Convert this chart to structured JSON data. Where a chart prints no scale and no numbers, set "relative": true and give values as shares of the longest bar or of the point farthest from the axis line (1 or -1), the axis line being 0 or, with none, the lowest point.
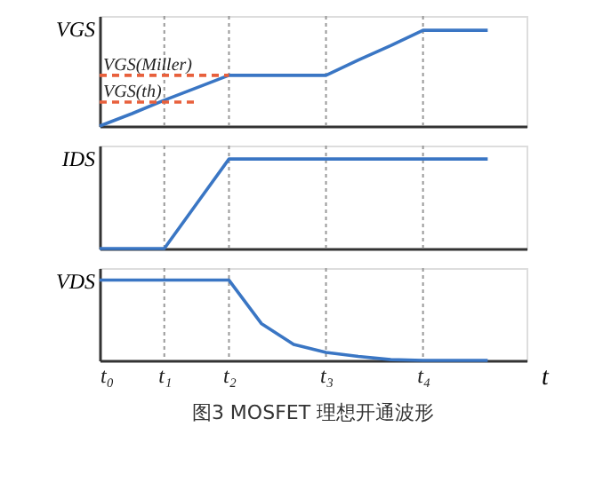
{
  "chart_data": [
    {
      "type": "line",
      "relative": true,
      "ylabel": "VGS",
      "categories": [
        "t₀",
        null,
        "t₁",
        null,
        "t₂",
        null,
        null,
        "t₃",
        null,
        null,
        "t₄",
        null,
        null
      ],
      "tick_labels": false,
      "grid": false,
      "series": [
        {
          "color": "#3a76c4",
          "values": [
            0,
            0.13,
            0.27,
            0.4,
            0.53,
            0.53,
            0.53,
            0.53,
            0.69,
            0.84,
            1,
            1,
            1
          ]
        },
        {
          "type": "line",
          "color": "#e8603c",
          "line_style": "dashed",
          "values": [
            0.53,
            0.53,
            0.53,
            0.53,
            0.53,
            null,
            null,
            null,
            null,
            null,
            null,
            null,
            null
          ]
        },
        {
          "type": "line",
          "color": "#e8603c",
          "line_style": "dashed",
          "values": [
            0.25,
            0.25,
            0.25,
            0.25,
            null,
            null,
            null,
            null,
            null,
            null,
            null,
            null,
            null
          ]
        }
      ],
      "ref_lines": [
        {
          "axis": "x",
          "value": "t₁",
          "color": "#999999",
          "line_style": "dotted"
        },
        {
          "axis": "x",
          "value": "t₂",
          "color": "#999999",
          "line_style": "dotted"
        },
        {
          "axis": "x",
          "value": "t₃",
          "color": "#999999",
          "line_style": "dotted"
        },
        {
          "axis": "x",
          "value": "t₄",
          "color": "#999999",
          "line_style": "dotted"
        }
      ],
      "annotations": [
        {
          "text": "VGS(Miller)",
          "x": "t₀",
          "y": 0.53
        },
        {
          "text": "VGS(th)",
          "x": "t₀",
          "y": 0.25
        }
      ]
    },
    {
      "type": "line",
      "relative": true,
      "ylabel": "IDS",
      "categories": [
        "t₀",
        null,
        "t₁",
        null,
        "t₂",
        null,
        null,
        "t₃",
        null,
        null,
        "t₄",
        null,
        null
      ],
      "tick_labels": false,
      "grid": false,
      "series": [
        {
          "color": "#3a76c4",
          "values": [
            0,
            0,
            0,
            0.5,
            1,
            1,
            1,
            1,
            1,
            1,
            1,
            1,
            1
          ]
        }
      ],
      "ref_lines": [
        {
          "axis": "x",
          "value": "t₁",
          "color": "#999999",
          "line_style": "dotted"
        },
        {
          "axis": "x",
          "value": "t₂",
          "color": "#999999",
          "line_style": "dotted"
        },
        {
          "axis": "x",
          "value": "t₃",
          "color": "#999999",
          "line_style": "dotted"
        },
        {
          "axis": "x",
          "value": "t₄",
          "color": "#999999",
          "line_style": "dotted"
        }
      ]
    },
    {
      "type": "line",
      "relative": true,
      "ylabel": "VDS",
      "xlabel": "t",
      "categories": [
        "t₀",
        null,
        "t₁",
        null,
        "t₂",
        null,
        null,
        "t₃",
        null,
        null,
        "t₄",
        null,
        null
      ],
      "tick_labels": "x",
      "grid": false,
      "series": [
        {
          "color": "#3a76c4",
          "values": [
            1,
            1,
            1,
            1,
            1,
            0.46,
            0.2,
            0.1,
            0.05,
            0.01,
            0,
            0,
            0
          ]
        }
      ],
      "ref_lines": [
        {
          "axis": "x",
          "value": "t₁",
          "color": "#999999",
          "line_style": "dotted"
        },
        {
          "axis": "x",
          "value": "t₂",
          "color": "#999999",
          "line_style": "dotted"
        },
        {
          "axis": "x",
          "value": "t₃",
          "color": "#999999",
          "line_style": "dotted"
        },
        {
          "axis": "x",
          "value": "t₄",
          "color": "#999999",
          "line_style": "dotted"
        }
      ],
      "annotations": [
        "图3 MOSFET 理想开通波形"
      ]
    }
  ]
}
